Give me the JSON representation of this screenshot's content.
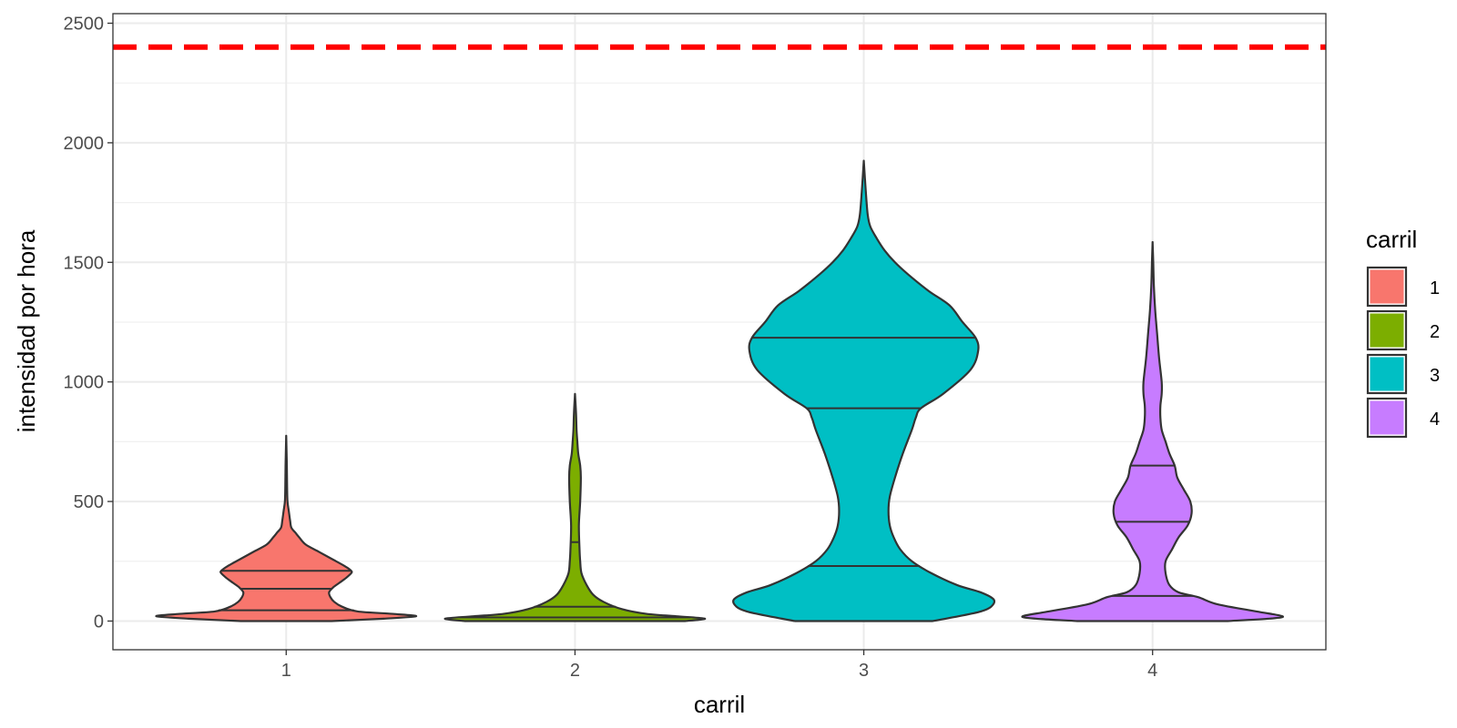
{
  "chart_data": {
    "type": "violin",
    "xlabel": "carril",
    "ylabel": "intensidad por hora",
    "ylim": [
      -120,
      2540
    ],
    "y_ticks": [
      0,
      500,
      1000,
      1500,
      2000,
      2500
    ],
    "y_tick_labels": [
      "0",
      "500",
      "1000",
      "1500",
      "2000",
      "2500"
    ],
    "categories": [
      "1",
      "2",
      "3",
      "4"
    ],
    "grid": true,
    "reference_line": {
      "y": 2400,
      "color": "#ff0000",
      "style": "dashed"
    },
    "legend": {
      "title": "carril",
      "position": "right",
      "entries": [
        "1",
        "2",
        "3",
        "4"
      ]
    },
    "series": [
      {
        "category": "1",
        "color": "#F8766D",
        "quantiles": [
          45,
          135,
          210
        ],
        "max": 775,
        "density": [
          [
            0,
            0.35
          ],
          [
            10,
            0.75
          ],
          [
            20,
            1.0
          ],
          [
            30,
            0.82
          ],
          [
            40,
            0.55
          ],
          [
            60,
            0.43
          ],
          [
            80,
            0.37
          ],
          [
            100,
            0.34
          ],
          [
            120,
            0.33
          ],
          [
            140,
            0.36
          ],
          [
            160,
            0.41
          ],
          [
            180,
            0.46
          ],
          [
            200,
            0.5
          ],
          [
            210,
            0.5
          ],
          [
            230,
            0.45
          ],
          [
            260,
            0.35
          ],
          [
            290,
            0.25
          ],
          [
            320,
            0.15
          ],
          [
            350,
            0.1
          ],
          [
            370,
            0.07
          ],
          [
            390,
            0.04
          ],
          [
            420,
            0.03
          ],
          [
            460,
            0.02
          ],
          [
            500,
            0.01
          ],
          [
            560,
            0.007
          ],
          [
            650,
            0.005
          ],
          [
            775,
            0.0
          ]
        ]
      },
      {
        "category": "2",
        "color": "#7CAE00",
        "quantiles": [
          15,
          60,
          330
        ],
        "max": 950,
        "density": [
          [
            0,
            0.85
          ],
          [
            10,
            1.0
          ],
          [
            20,
            0.78
          ],
          [
            30,
            0.55
          ],
          [
            50,
            0.36
          ],
          [
            80,
            0.22
          ],
          [
            110,
            0.14
          ],
          [
            150,
            0.09
          ],
          [
            200,
            0.05
          ],
          [
            250,
            0.04
          ],
          [
            300,
            0.035
          ],
          [
            400,
            0.03
          ],
          [
            500,
            0.04
          ],
          [
            600,
            0.045
          ],
          [
            650,
            0.04
          ],
          [
            700,
            0.025
          ],
          [
            750,
            0.018
          ],
          [
            800,
            0.012
          ],
          [
            870,
            0.008
          ],
          [
            950,
            0.0
          ]
        ]
      },
      {
        "category": "3",
        "color": "#00BFC4",
        "quantiles": [
          230,
          890,
          1185
        ],
        "max": 1925,
        "density": [
          [
            0,
            0.53
          ],
          [
            20,
            0.73
          ],
          [
            40,
            0.9
          ],
          [
            60,
            0.98
          ],
          [
            90,
            1.0
          ],
          [
            120,
            0.9
          ],
          [
            150,
            0.72
          ],
          [
            200,
            0.52
          ],
          [
            250,
            0.37
          ],
          [
            300,
            0.28
          ],
          [
            350,
            0.23
          ],
          [
            400,
            0.2
          ],
          [
            460,
            0.19
          ],
          [
            520,
            0.2
          ],
          [
            600,
            0.24
          ],
          [
            700,
            0.3
          ],
          [
            800,
            0.37
          ],
          [
            850,
            0.4
          ],
          [
            890,
            0.44
          ],
          [
            950,
            0.61
          ],
          [
            1050,
            0.82
          ],
          [
            1130,
            0.88
          ],
          [
            1185,
            0.86
          ],
          [
            1250,
            0.76
          ],
          [
            1320,
            0.66
          ],
          [
            1380,
            0.5
          ],
          [
            1450,
            0.34
          ],
          [
            1500,
            0.24
          ],
          [
            1550,
            0.16
          ],
          [
            1600,
            0.1
          ],
          [
            1650,
            0.05
          ],
          [
            1700,
            0.03
          ],
          [
            1800,
            0.015
          ],
          [
            1925,
            0.0
          ]
        ]
      },
      {
        "category": "4",
        "color": "#C77CFF",
        "quantiles": [
          105,
          415,
          650
        ],
        "max": 1585,
        "density": [
          [
            0,
            0.58
          ],
          [
            10,
            0.9
          ],
          [
            20,
            1.0
          ],
          [
            40,
            0.8
          ],
          [
            70,
            0.5
          ],
          [
            100,
            0.35
          ],
          [
            120,
            0.2
          ],
          [
            150,
            0.13
          ],
          [
            200,
            0.1
          ],
          [
            250,
            0.1
          ],
          [
            300,
            0.15
          ],
          [
            350,
            0.2
          ],
          [
            400,
            0.27
          ],
          [
            450,
            0.3
          ],
          [
            500,
            0.29
          ],
          [
            550,
            0.24
          ],
          [
            600,
            0.19
          ],
          [
            650,
            0.17
          ],
          [
            700,
            0.13
          ],
          [
            750,
            0.1
          ],
          [
            800,
            0.07
          ],
          [
            850,
            0.06
          ],
          [
            900,
            0.06
          ],
          [
            950,
            0.07
          ],
          [
            1000,
            0.07
          ],
          [
            1100,
            0.05
          ],
          [
            1200,
            0.035
          ],
          [
            1300,
            0.02
          ],
          [
            1400,
            0.01
          ],
          [
            1500,
            0.005
          ],
          [
            1585,
            0.0
          ]
        ]
      }
    ]
  }
}
